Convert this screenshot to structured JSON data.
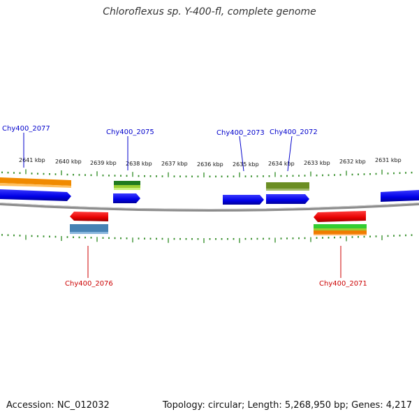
{
  "title": "Chloroflexus sp. Y-400-fl, complete genome",
  "footer": {
    "accession": "Accession: NC_012032",
    "summary": "Topology: circular; Length: 5,268,950 bp; Genes: 4,217"
  },
  "colors": {
    "forward_gene": "#0000ee",
    "reverse_gene": "#ee0000",
    "forward_label": "#0000cc",
    "reverse_label": "#cc0000",
    "tick": "#2e8b22",
    "backbone": "#888888"
  },
  "kbp_labels": [
    "2641 kbp",
    "2640 kbp",
    "2639 kbp",
    "2638 kbp",
    "2637 kbp",
    "2636 kbp",
    "2635 kbp",
    "2634 kbp",
    "2633 kbp",
    "2632 kbp",
    "2631 kbp"
  ],
  "gene_labels": {
    "Chy400_2077": "Chy400_2077",
    "Chy400_2075": "Chy400_2075",
    "Chy400_2073": "Chy400_2073",
    "Chy400_2072": "Chy400_2072",
    "Chy400_2076": "Chy400_2076",
    "Chy400_2071": "Chy400_2071"
  }
}
